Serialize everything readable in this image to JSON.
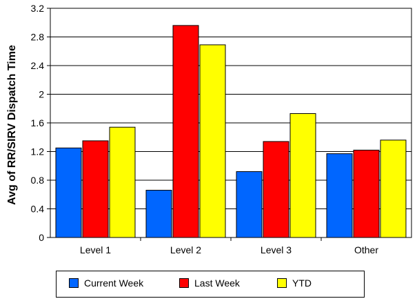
{
  "chart_data": {
    "type": "bar",
    "title": "",
    "xlabel": "",
    "ylabel": "Avg of RR/SIRV Dispatch Time",
    "categories": [
      "Level 1",
      "Level 2",
      "Level 3",
      "Other"
    ],
    "ylim": [
      0,
      3.2
    ],
    "yticks": [
      "0",
      "0.4",
      "0.8",
      "1.2",
      "1.6",
      "2",
      "2.4",
      "2.8",
      "3.2"
    ],
    "grid": "horizontal",
    "legend_position": "bottom",
    "series": [
      {
        "name": "Current Week",
        "color": "#0066FF",
        "values": [
          1.25,
          0.66,
          0.92,
          1.17
        ]
      },
      {
        "name": "Last Week",
        "color": "#FF0000",
        "values": [
          1.35,
          2.96,
          1.34,
          1.22
        ]
      },
      {
        "name": "YTD",
        "color": "#FFFF00",
        "values": [
          1.54,
          2.69,
          1.73,
          1.36
        ]
      }
    ]
  }
}
